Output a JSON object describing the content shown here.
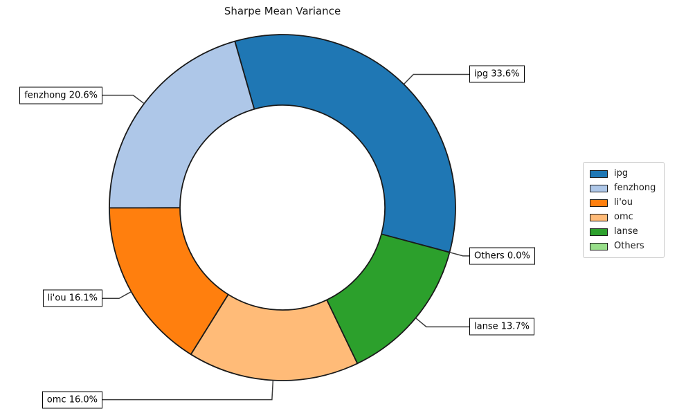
{
  "title": "Sharpe Mean Variance",
  "chart_data": {
    "type": "pie",
    "subtype": "donut",
    "title": "Sharpe Mean Variance",
    "categories": [
      "ipg",
      "fenzhong",
      "li'ou",
      "omc",
      "lanse",
      "Others"
    ],
    "values": [
      33.6,
      20.6,
      16.1,
      16.0,
      13.7,
      0.0
    ],
    "unit": "%",
    "slice_labels": [
      "ipg 33.6%",
      "fenzhong 20.6%",
      "li'ou 16.1%",
      "omc 16.0%",
      "lanse 13.7%",
      "Others 0.0%"
    ],
    "colors": [
      "#1f77b4",
      "#aec7e8",
      "#ff7f0e",
      "#ffbb78",
      "#2ca02c",
      "#98df8a"
    ],
    "edge_color": "#1a1a1a",
    "leader_color": "#3a3a3a",
    "start_angle_deg": -15,
    "direction": "counterclockwise",
    "donut_hole_ratio": 0.59,
    "legend_position": "center right",
    "legend_entries": [
      "ipg",
      "fenzhong",
      "li'ou",
      "omc",
      "lanse",
      "Others"
    ]
  }
}
